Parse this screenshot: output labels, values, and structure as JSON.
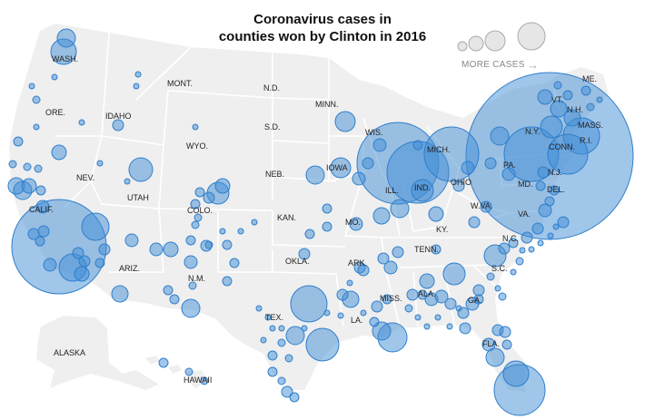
{
  "title": {
    "line1": "Coronavirus cases in",
    "line2": "counties won by Clinton in 2016"
  },
  "legend": {
    "label": "MORE CASES",
    "arrow": "→",
    "bubble_fill": "#e6e6e6",
    "bubble_stroke": "#aaaaaa"
  },
  "colors": {
    "land": "#efefef",
    "state_border": "#ffffff",
    "bubble_fill": "rgba(66, 141, 214, 0.5)",
    "bubble_stroke": "#2f7fcc",
    "label": "#222222"
  },
  "state_labels": [
    "WASH.",
    "ORE.",
    "IDAHO",
    "MONT.",
    "N.D.",
    "MINN.",
    "WIS.",
    "MICH.",
    "N.Y.",
    "VT.",
    "N.H.",
    "ME.",
    "MASS.",
    "R.I.",
    "CONN.",
    "N.J.",
    "PA.",
    "DEL.",
    "MD.",
    "VA.",
    "W.VA.",
    "OHIO",
    "IND.",
    "ILL.",
    "IOWA",
    "S.D.",
    "NEB.",
    "WYO.",
    "NEV.",
    "CALIF.",
    "UTAH",
    "COLO.",
    "KAN.",
    "MO.",
    "KY.",
    "TENN.",
    "N.C.",
    "S.C.",
    "GA.",
    "ALA.",
    "MISS.",
    "ARK.",
    "LA.",
    "OKLA.",
    "TEX.",
    "N.M.",
    "ARIZ.",
    "FLA.",
    "ALASKA",
    "HAWAII"
  ]
}
